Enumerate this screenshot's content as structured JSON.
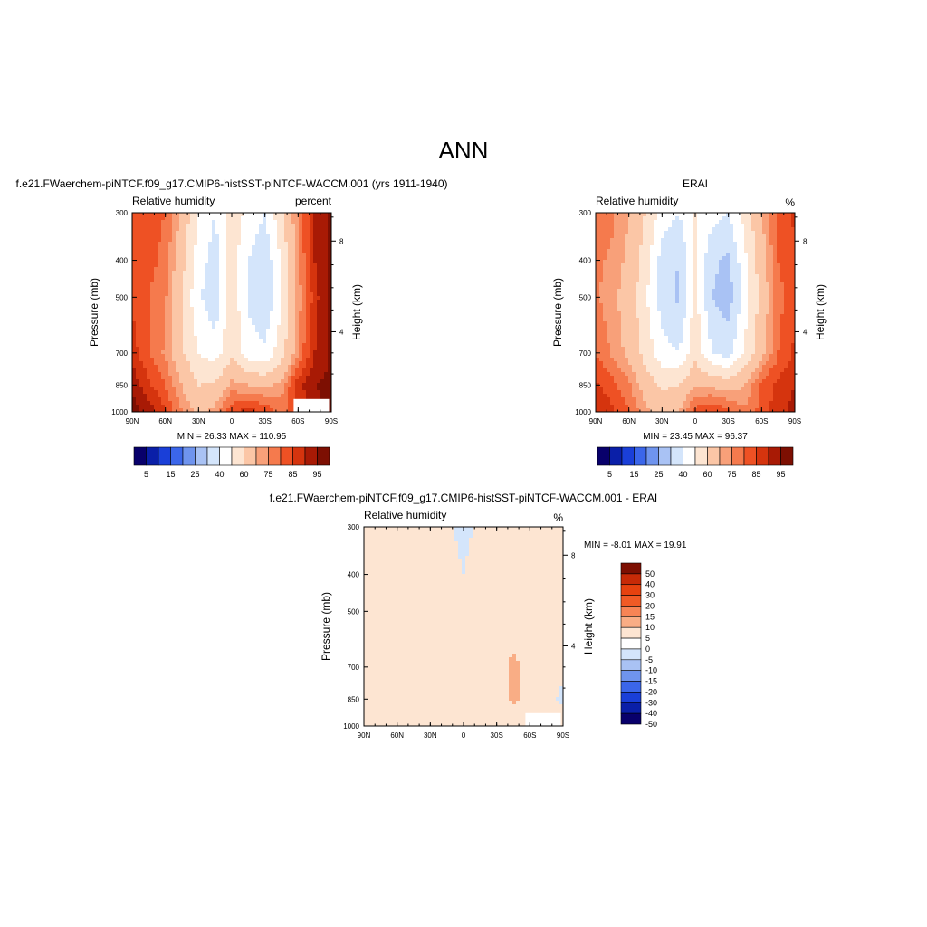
{
  "page": {
    "title": "ANN"
  },
  "colors": {
    "abs_levels": [
      "#08006b",
      "#0a1fa8",
      "#1a3fd8",
      "#3b66ea",
      "#6f94ee",
      "#a9c2f4",
      "#d4e5fb",
      "#ffffff",
      "#fde5d2",
      "#fbc6a6",
      "#f8a079",
      "#f57a4d",
      "#ee5124",
      "#d5340e",
      "#a81a05",
      "#7d0f02"
    ],
    "abs_labels": [
      "5",
      "15",
      "25",
      "40",
      "60",
      "75",
      "85",
      "95"
    ],
    "abs_bounds": [
      5,
      10,
      15,
      20,
      25,
      30,
      40,
      50,
      60,
      70,
      75,
      80,
      85,
      90,
      95
    ],
    "diff_levels": [
      "#7d0f02",
      "#c72a07",
      "#e6420f",
      "#f05a25",
      "#f78455",
      "#f9ad85",
      "#fde5d2",
      "#ffffff",
      "#d4e5fb",
      "#a9c2f4",
      "#6f94ee",
      "#3b66ea",
      "#1a3fd8",
      "#0a1fa8",
      "#08006b"
    ],
    "diff_labels": [
      "50",
      "40",
      "30",
      "20",
      "15",
      "10",
      "5",
      "0",
      "-5",
      "-10",
      "-15",
      "-20",
      "-30",
      "-40",
      "-50"
    ]
  },
  "chart_data": [
    {
      "type": "heatmap",
      "id": "model",
      "title": "f.e21.FWaerchem-piNTCF.f09_g17.CMIP6-histSST-piNTCF-WACCM.001 (yrs 1911-1940)",
      "variable": "Relative humidity",
      "units": "percent",
      "xlabel": "",
      "ylabel": "Pressure (mb)",
      "y2label": "Height (km)",
      "x_ticks": [
        "90N",
        "60N",
        "30N",
        "0",
        "30S",
        "60S",
        "90S"
      ],
      "y_ticks": [
        300,
        400,
        500,
        700,
        850,
        1000
      ],
      "y2_ticks": [
        8,
        4
      ],
      "xlim": [
        90,
        -90
      ],
      "ylim": [
        1000,
        300
      ],
      "stats": "MIN =  26.33  MAX = 110.95",
      "min": 26.33,
      "max": 110.95,
      "profile_x": [
        90,
        75,
        60,
        45,
        30,
        15,
        0,
        -15,
        -30,
        -45,
        -60,
        -75,
        -90
      ],
      "profile_y": [
        1000,
        850,
        700,
        500,
        400,
        300
      ],
      "values": [
        [
          98,
          93,
          85,
          75,
          68,
          72,
          84,
          88,
          84,
          78,
          85,
          93,
          97
        ],
        [
          94,
          86,
          80,
          70,
          60,
          62,
          72,
          70,
          68,
          72,
          88,
          95,
          96
        ],
        [
          88,
          80,
          74,
          62,
          50,
          45,
          58,
          45,
          42,
          56,
          75,
          90,
          96
        ],
        [
          84,
          80,
          76,
          60,
          42,
          32,
          58,
          38,
          30,
          50,
          72,
          88,
          96
        ],
        [
          84,
          82,
          78,
          64,
          45,
          35,
          56,
          40,
          32,
          52,
          74,
          90,
          97
        ],
        [
          84,
          82,
          80,
          68,
          50,
          40,
          55,
          48,
          40,
          58,
          76,
          90,
          97
        ]
      ]
    },
    {
      "type": "heatmap",
      "id": "obs",
      "title": "ERAI",
      "variable": "Relative humidity",
      "units": "%",
      "xlabel": "",
      "ylabel": "Pressure (mb)",
      "y2label": "Height (km)",
      "x_ticks": [
        "90N",
        "60N",
        "30N",
        "0",
        "30S",
        "60S",
        "90S"
      ],
      "y_ticks": [
        300,
        400,
        500,
        700,
        850,
        1000
      ],
      "y2_ticks": [
        8,
        4
      ],
      "xlim": [
        90,
        -90
      ],
      "ylim": [
        1000,
        300
      ],
      "stats": "MIN =  23.45  MAX =  96.37",
      "min": 23.45,
      "max": 96.37,
      "profile_x": [
        90,
        75,
        60,
        45,
        30,
        15,
        0,
        -15,
        -30,
        -45,
        -60,
        -75,
        -90
      ],
      "profile_y": [
        1000,
        850,
        700,
        500,
        400,
        300
      ],
      "values": [
        [
          90,
          86,
          80,
          72,
          66,
          70,
          82,
          86,
          82,
          76,
          82,
          88,
          92
        ],
        [
          86,
          82,
          76,
          66,
          58,
          60,
          70,
          68,
          66,
          70,
          82,
          86,
          90
        ],
        [
          80,
          74,
          68,
          56,
          44,
          40,
          56,
          40,
          36,
          52,
          68,
          80,
          86
        ],
        [
          76,
          72,
          66,
          52,
          35,
          28,
          54,
          30,
          25,
          45,
          64,
          78,
          84
        ],
        [
          76,
          74,
          68,
          55,
          36,
          30,
          52,
          32,
          28,
          48,
          66,
          80,
          84
        ],
        [
          78,
          76,
          70,
          60,
          45,
          40,
          50,
          44,
          40,
          54,
          70,
          82,
          86
        ]
      ]
    },
    {
      "type": "heatmap",
      "id": "diff",
      "title": "f.e21.FWaerchem-piNTCF.f09_g17.CMIP6-histSST-piNTCF-WACCM.001 - ERAI",
      "variable": "Relative humidity",
      "units": "%",
      "xlabel": "",
      "ylabel": "Pressure (mb)",
      "y2label": "Height (km)",
      "x_ticks": [
        "90N",
        "60N",
        "30N",
        "0",
        "30S",
        "60S",
        "90S"
      ],
      "y_ticks": [
        300,
        400,
        500,
        700,
        850,
        1000
      ],
      "y2_ticks": [
        8,
        4
      ],
      "xlim": [
        90,
        -90
      ],
      "ylim": [
        1000,
        300
      ],
      "stats": "MIN =  -8.01  MAX =  19.91",
      "min": -8.01,
      "max": 19.91,
      "profile_x": [
        90,
        75,
        60,
        45,
        30,
        15,
        0,
        -15,
        -30,
        -45,
        -60,
        -75,
        -90
      ],
      "profile_y": [
        1000,
        850,
        700,
        500,
        400,
        300
      ],
      "values": [
        [
          10,
          8,
          5,
          3,
          2,
          2,
          2,
          3,
          4,
          3,
          4,
          6,
          6
        ],
        [
          8,
          5,
          4,
          4,
          2,
          2,
          2,
          2,
          5,
          12,
          6,
          3,
          -2
        ],
        [
          6,
          6,
          5,
          4,
          3,
          3,
          2,
          3,
          6,
          12,
          7,
          5,
          2
        ],
        [
          6,
          6,
          7,
          5,
          4,
          3,
          2,
          5,
          5,
          5,
          7,
          8,
          9
        ],
        [
          6,
          6,
          8,
          7,
          6,
          4,
          0,
          6,
          6,
          5,
          7,
          9,
          10
        ],
        [
          5,
          5,
          6,
          5,
          3,
          2,
          -3,
          2,
          4,
          4,
          6,
          7,
          8
        ]
      ]
    }
  ]
}
